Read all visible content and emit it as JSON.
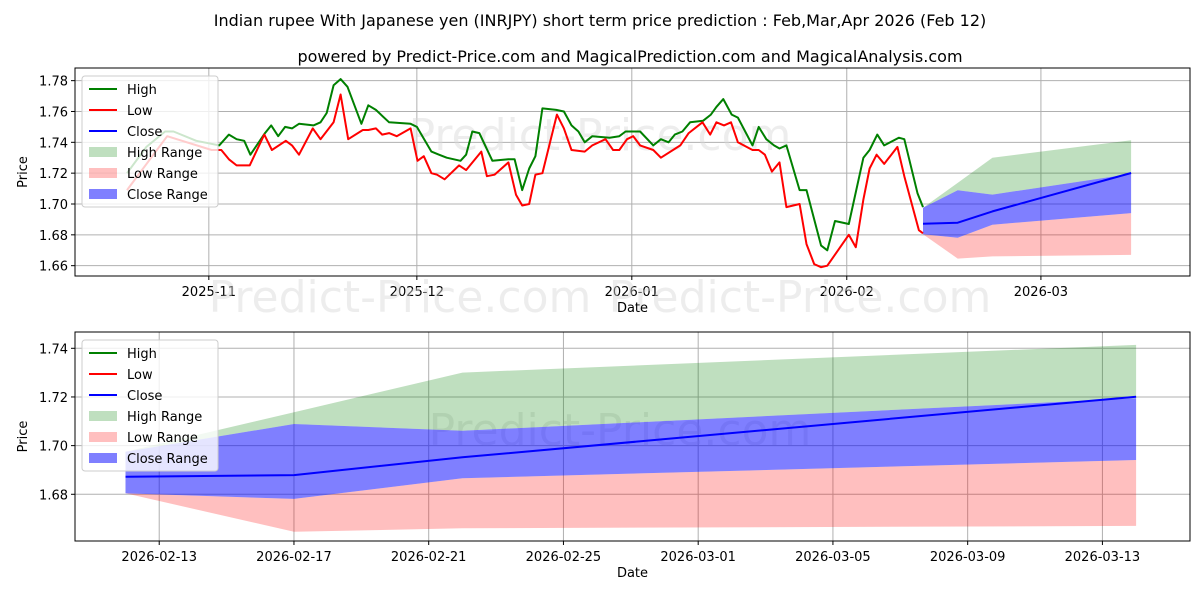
{
  "title": "Indian rupee With Japanese yen (INRJPY) short term price prediction : Feb,Mar,Apr 2026 (Feb 12)",
  "subtitle": "powered by Predict-Price.com and MagicalPrediction.com and MagicalAnalysis.com",
  "watermark": "Predict-Price.com",
  "colors": {
    "high": "#008000",
    "low": "#ff0000",
    "close": "#0000ff",
    "high_range": "#008000",
    "low_range": "#ff0000",
    "close_range": "#0000ff"
  },
  "chart_data": [
    {
      "type": "line",
      "x_unit": "days since 2025-11-01",
      "xlabel": "Date",
      "ylabel": "Price",
      "xlim": [
        -19.3,
        141.5
      ],
      "ylim": [
        1.6533,
        1.7882
      ],
      "grid": true,
      "legend_position": "top-left",
      "x_ticks": [
        {
          "x": 0,
          "label": "2025-11"
        },
        {
          "x": 30,
          "label": "2025-12"
        },
        {
          "x": 61,
          "label": "2026-01"
        },
        {
          "x": 92,
          "label": "2026-02"
        },
        {
          "x": 120,
          "label": "2026-03"
        }
      ],
      "y_ticks": [
        {
          "y": 1.66,
          "label": "1.66"
        },
        {
          "y": 1.68,
          "label": "1.68"
        },
        {
          "y": 1.7,
          "label": "1.70"
        },
        {
          "y": 1.72,
          "label": "1.72"
        },
        {
          "y": 1.74,
          "label": "1.74"
        },
        {
          "y": 1.76,
          "label": "1.76"
        },
        {
          "y": 1.78,
          "label": "1.78"
        }
      ],
      "legend": [
        "High",
        "Low",
        "Close",
        "High Range",
        "Low Range",
        "Close Range"
      ],
      "series": [
        {
          "name": "High",
          "points": [
            [
              -11.8,
              1.72
            ],
            [
              -9.0,
              1.737
            ],
            [
              -6.3,
              1.747
            ],
            [
              -5.1,
              1.747
            ],
            [
              -1.8,
              1.741
            ],
            [
              1.5,
              1.738
            ],
            [
              2.9,
              1.745
            ],
            [
              4.0,
              1.742
            ],
            [
              5.1,
              1.741
            ],
            [
              6.0,
              1.732
            ],
            [
              8.1,
              1.746
            ],
            [
              9.0,
              1.751
            ],
            [
              10.0,
              1.744
            ],
            [
              11.0,
              1.75
            ],
            [
              12.0,
              1.749
            ],
            [
              13.0,
              1.752
            ],
            [
              15.1,
              1.751
            ],
            [
              16.1,
              1.753
            ],
            [
              17.0,
              1.759
            ],
            [
              18.0,
              1.777
            ],
            [
              19.0,
              1.781
            ],
            [
              20.0,
              1.776
            ],
            [
              22.0,
              1.752
            ],
            [
              23.0,
              1.764
            ],
            [
              24.1,
              1.761
            ],
            [
              26.0,
              1.753
            ],
            [
              29.1,
              1.752
            ],
            [
              30.0,
              1.75
            ],
            [
              32.1,
              1.734
            ],
            [
              33.2,
              1.732
            ],
            [
              34.3,
              1.73
            ],
            [
              36.3,
              1.728
            ],
            [
              37.1,
              1.732
            ],
            [
              38.0,
              1.747
            ],
            [
              39.0,
              1.746
            ],
            [
              40.9,
              1.728
            ],
            [
              43.2,
              1.729
            ],
            [
              44.1,
              1.729
            ],
            [
              45.2,
              1.709
            ],
            [
              46.2,
              1.723
            ],
            [
              47.1,
              1.731
            ],
            [
              48.1,
              1.762
            ],
            [
              50.1,
              1.761
            ],
            [
              51.2,
              1.76
            ],
            [
              52.3,
              1.751
            ],
            [
              53.3,
              1.747
            ],
            [
              54.2,
              1.74
            ],
            [
              55.3,
              1.744
            ],
            [
              57.8,
              1.743
            ],
            [
              59.2,
              1.744
            ],
            [
              60.1,
              1.747
            ],
            [
              62.2,
              1.747
            ],
            [
              64.1,
              1.738
            ],
            [
              65.2,
              1.742
            ],
            [
              66.3,
              1.74
            ],
            [
              67.2,
              1.745
            ],
            [
              68.3,
              1.747
            ],
            [
              69.4,
              1.753
            ],
            [
              71.3,
              1.754
            ],
            [
              72.4,
              1.758
            ],
            [
              73.2,
              1.763
            ],
            [
              74.2,
              1.768
            ],
            [
              75.4,
              1.758
            ],
            [
              76.3,
              1.756
            ],
            [
              78.4,
              1.738
            ],
            [
              79.3,
              1.75
            ],
            [
              80.4,
              1.742
            ],
            [
              81.5,
              1.738
            ],
            [
              82.3,
              1.736
            ],
            [
              83.3,
              1.738
            ],
            [
              85.2,
              1.709
            ],
            [
              86.2,
              1.709
            ],
            [
              88.3,
              1.673
            ],
            [
              89.2,
              1.67
            ],
            [
              90.3,
              1.689
            ],
            [
              92.3,
              1.687
            ],
            [
              94.4,
              1.73
            ],
            [
              95.3,
              1.735
            ],
            [
              96.4,
              1.745
            ],
            [
              97.4,
              1.738
            ],
            [
              99.5,
              1.743
            ],
            [
              100.3,
              1.742
            ],
            [
              102.2,
              1.707
            ],
            [
              103.0,
              1.698
            ]
          ]
        },
        {
          "name": "Low",
          "points": [
            [
              -11.8,
              1.709
            ],
            [
              -6.0,
              1.744
            ],
            [
              0.4,
              1.735
            ],
            [
              1.8,
              1.735
            ],
            [
              2.9,
              1.729
            ],
            [
              4.0,
              1.725
            ],
            [
              5.9,
              1.725
            ],
            [
              8.0,
              1.745
            ],
            [
              9.1,
              1.735
            ],
            [
              11.1,
              1.741
            ],
            [
              12.0,
              1.738
            ],
            [
              13.0,
              1.732
            ],
            [
              15.0,
              1.749
            ],
            [
              16.1,
              1.742
            ],
            [
              18.0,
              1.753
            ],
            [
              19.0,
              1.771
            ],
            [
              20.1,
              1.742
            ],
            [
              22.2,
              1.748
            ],
            [
              23.0,
              1.748
            ],
            [
              24.1,
              1.749
            ],
            [
              25.0,
              1.745
            ],
            [
              26.0,
              1.746
            ],
            [
              27.1,
              1.744
            ],
            [
              29.1,
              1.749
            ],
            [
              30.1,
              1.728
            ],
            [
              31.0,
              1.731
            ],
            [
              32.1,
              1.72
            ],
            [
              32.9,
              1.719
            ],
            [
              34.0,
              1.716
            ],
            [
              36.1,
              1.725
            ],
            [
              37.1,
              1.722
            ],
            [
              39.3,
              1.734
            ],
            [
              40.1,
              1.718
            ],
            [
              41.2,
              1.719
            ],
            [
              43.2,
              1.727
            ],
            [
              44.3,
              1.706
            ],
            [
              45.2,
              1.699
            ],
            [
              46.2,
              1.7
            ],
            [
              47.1,
              1.719
            ],
            [
              48.1,
              1.72
            ],
            [
              50.2,
              1.758
            ],
            [
              51.2,
              1.749
            ],
            [
              52.3,
              1.735
            ],
            [
              54.2,
              1.734
            ],
            [
              55.3,
              1.738
            ],
            [
              57.2,
              1.742
            ],
            [
              58.3,
              1.735
            ],
            [
              59.2,
              1.735
            ],
            [
              60.3,
              1.742
            ],
            [
              61.2,
              1.744
            ],
            [
              62.2,
              1.738
            ],
            [
              64.1,
              1.735
            ],
            [
              65.2,
              1.73
            ],
            [
              68.0,
              1.738
            ],
            [
              69.2,
              1.746
            ],
            [
              71.2,
              1.753
            ],
            [
              72.3,
              1.745
            ],
            [
              73.2,
              1.753
            ],
            [
              74.3,
              1.751
            ],
            [
              75.3,
              1.753
            ],
            [
              76.3,
              1.74
            ],
            [
              78.4,
              1.735
            ],
            [
              79.3,
              1.735
            ],
            [
              80.2,
              1.732
            ],
            [
              81.2,
              1.721
            ],
            [
              82.3,
              1.727
            ],
            [
              83.3,
              1.698
            ],
            [
              85.2,
              1.7
            ],
            [
              86.2,
              1.674
            ],
            [
              87.3,
              1.661
            ],
            [
              88.3,
              1.659
            ],
            [
              89.2,
              1.66
            ],
            [
              92.3,
              1.68
            ],
            [
              93.3,
              1.672
            ],
            [
              94.4,
              1.703
            ],
            [
              95.3,
              1.723
            ],
            [
              96.3,
              1.732
            ],
            [
              97.4,
              1.726
            ],
            [
              99.3,
              1.737
            ],
            [
              100.3,
              1.718
            ],
            [
              102.4,
              1.683
            ],
            [
              103.0,
              1.681
            ]
          ]
        },
        {
          "name": "Close",
          "points": [
            [
              103,
              1.6872
            ],
            [
              108,
              1.6879
            ],
            [
              113,
              1.6952
            ],
            [
              133,
              1.7201
            ]
          ]
        }
      ],
      "ranges": [
        {
          "name": "High Range",
          "x": [
            103,
            108,
            113,
            133
          ],
          "upper": [
            1.6975,
            1.7137,
            1.73,
            1.7414
          ],
          "lower": [
            1.6975,
            1.7089,
            1.7061,
            1.7195
          ]
        },
        {
          "name": "Low Range",
          "x": [
            103,
            108,
            113,
            133
          ],
          "upper": [
            1.6804,
            1.6781,
            1.6866,
            1.6941
          ],
          "lower": [
            1.6804,
            1.6646,
            1.666,
            1.667
          ]
        },
        {
          "name": "Close Range",
          "x": [
            103,
            108,
            113,
            133
          ],
          "upper": [
            1.6975,
            1.7089,
            1.7061,
            1.7195
          ],
          "lower": [
            1.6804,
            1.6781,
            1.6866,
            1.6941
          ]
        }
      ]
    },
    {
      "type": "line",
      "x_unit": "days since 2025-11-01",
      "xlabel": "Date",
      "ylabel": "Price",
      "xlim": [
        101.5,
        134.6
      ],
      "ylim": [
        1.6608,
        1.7467
      ],
      "grid": true,
      "legend_position": "top-left",
      "x_ticks": [
        {
          "x": 104,
          "label": "2026-02-13"
        },
        {
          "x": 108,
          "label": "2026-02-17"
        },
        {
          "x": 112,
          "label": "2026-02-21"
        },
        {
          "x": 116,
          "label": "2026-02-25"
        },
        {
          "x": 120,
          "label": "2026-03-01"
        },
        {
          "x": 124,
          "label": "2026-03-05"
        },
        {
          "x": 128,
          "label": "2026-03-09"
        },
        {
          "x": 132,
          "label": "2026-03-13"
        }
      ],
      "y_ticks": [
        {
          "y": 1.68,
          "label": "1.68"
        },
        {
          "y": 1.7,
          "label": "1.70"
        },
        {
          "y": 1.72,
          "label": "1.72"
        },
        {
          "y": 1.74,
          "label": "1.74"
        }
      ],
      "legend": [
        "High",
        "Low",
        "Close",
        "High Range",
        "Low Range",
        "Close Range"
      ],
      "series": [
        {
          "name": "Close",
          "points": [
            [
              103,
              1.6872
            ],
            [
              108,
              1.6879
            ],
            [
              113,
              1.6952
            ],
            [
              133,
              1.7201
            ]
          ]
        }
      ],
      "ranges": [
        {
          "name": "High Range",
          "x": [
            103,
            108,
            113,
            133
          ],
          "upper": [
            1.6975,
            1.7137,
            1.73,
            1.7414
          ],
          "lower": [
            1.6975,
            1.7089,
            1.7061,
            1.7195
          ]
        },
        {
          "name": "Low Range",
          "x": [
            103,
            108,
            113,
            133
          ],
          "upper": [
            1.6804,
            1.6781,
            1.6866,
            1.6941
          ],
          "lower": [
            1.6804,
            1.6646,
            1.666,
            1.667
          ]
        },
        {
          "name": "Close Range",
          "x": [
            103,
            108,
            113,
            133
          ],
          "upper": [
            1.6975,
            1.7089,
            1.7061,
            1.7195
          ],
          "lower": [
            1.6804,
            1.6781,
            1.6866,
            1.6941
          ]
        }
      ]
    }
  ]
}
